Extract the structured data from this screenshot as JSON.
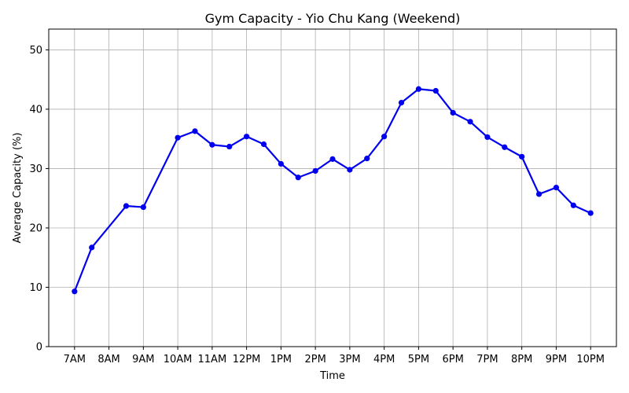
{
  "chart_data": {
    "type": "line",
    "title": "Gym Capacity - Yio Chu Kang (Weekend)",
    "xlabel": "Time",
    "ylabel": "Average Capacity (%)",
    "x_tick_labels": [
      "7AM",
      "8AM",
      "9AM",
      "10AM",
      "11AM",
      "12PM",
      "1PM",
      "2PM",
      "3PM",
      "4PM",
      "5PM",
      "6PM",
      "7PM",
      "8PM",
      "9PM",
      "10PM"
    ],
    "x_range": [
      7,
      22
    ],
    "ylim": [
      0,
      53.5
    ],
    "y_ticks": [
      0,
      10,
      20,
      30,
      40,
      50
    ],
    "grid": true,
    "legend": "none",
    "series": [
      {
        "color": "#0000ee",
        "marker": "circle",
        "x": [
          7,
          7.5,
          8.5,
          9,
          10,
          10.5,
          11,
          11.5,
          12,
          12.5,
          13,
          13.5,
          14,
          14.5,
          15,
          15.5,
          16,
          16.5,
          17,
          17.5,
          18,
          18.5,
          19,
          19.5,
          20,
          20.5,
          21,
          21.5,
          22
        ],
        "values": [
          9.3,
          16.7,
          23.7,
          23.5,
          35.2,
          36.3,
          34.0,
          33.7,
          35.4,
          34.1,
          30.8,
          28.5,
          29.6,
          31.6,
          29.8,
          31.7,
          35.4,
          41.1,
          43.4,
          43.1,
          39.4,
          37.9,
          35.3,
          33.6,
          32.0,
          25.7,
          26.8,
          23.8,
          22.5
        ]
      }
    ]
  }
}
